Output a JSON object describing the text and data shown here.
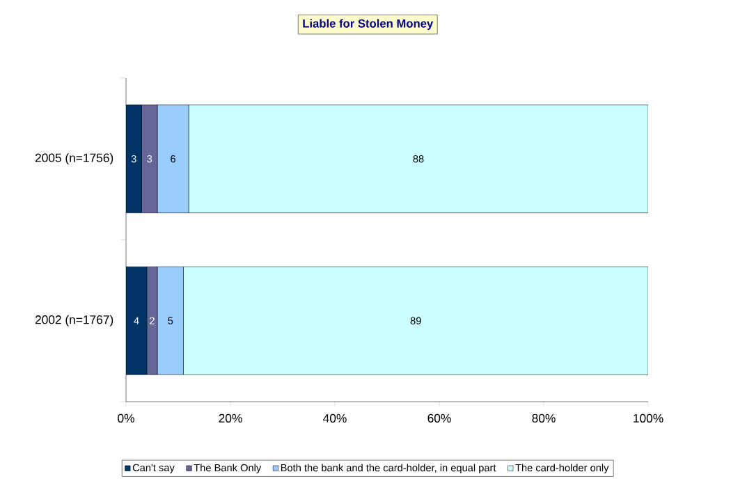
{
  "chart_data": {
    "type": "bar",
    "orientation": "horizontal",
    "stacked": true,
    "title": "Liable for Stolen Money",
    "categories": [
      "2005 (n=1756)",
      "2002 (n=1767)"
    ],
    "series": [
      {
        "name": "Can't say",
        "color": "#003366",
        "values": [
          3,
          4
        ]
      },
      {
        "name": "The Bank Only",
        "color": "#666699",
        "values": [
          3,
          2
        ]
      },
      {
        "name": "Both the bank and the card-holder, in equal part",
        "color": "#99ccff",
        "values": [
          6,
          5
        ]
      },
      {
        "name": "The card-holder only",
        "color": "#ccffff",
        "values": [
          88,
          89
        ]
      }
    ],
    "xlim": [
      0,
      100
    ],
    "xticks": [
      {
        "value": 0,
        "label": "0%"
      },
      {
        "value": 20,
        "label": "20%"
      },
      {
        "value": 40,
        "label": "40%"
      },
      {
        "value": 60,
        "label": "60%"
      },
      {
        "value": 80,
        "label": "80%"
      },
      {
        "value": 100,
        "label": "100%"
      }
    ],
    "data_labels": true,
    "legend": "bottom"
  }
}
